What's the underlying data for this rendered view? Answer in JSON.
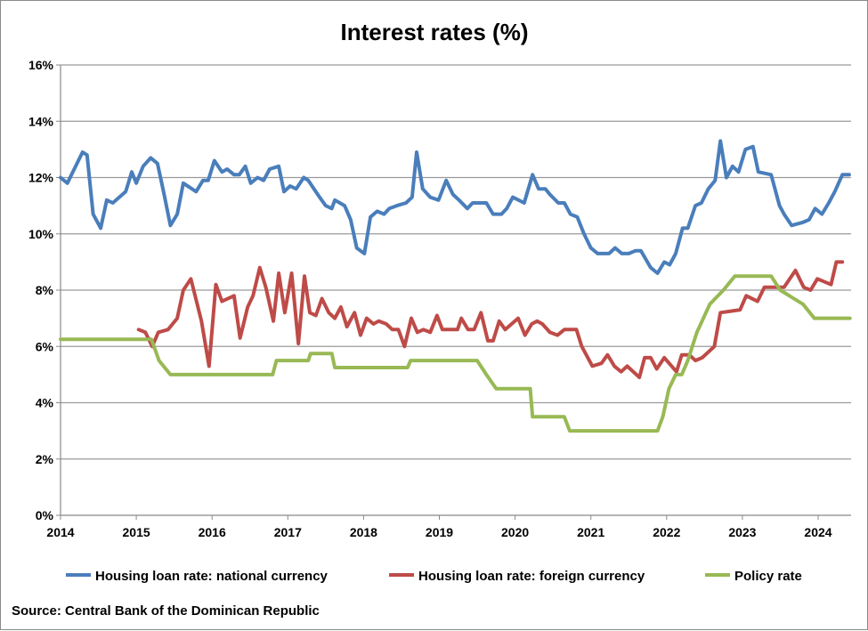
{
  "chart_data": {
    "type": "line",
    "title": "Interest rates (%)",
    "xlabel": "",
    "ylabel": "",
    "ylim": [
      0,
      16
    ],
    "xlim": [
      2014,
      2024.42
    ],
    "y_ticks": [
      "0%",
      "2%",
      "4%",
      "6%",
      "8%",
      "10%",
      "12%",
      "14%",
      "16%"
    ],
    "x_ticks": [
      "2014",
      "2015",
      "2016",
      "2017",
      "2018",
      "2019",
      "2020",
      "2021",
      "2022",
      "2023",
      "2024"
    ],
    "grid": "horizontal",
    "legend_placement": "bottom",
    "source": "Source: Central Bank of the Dominican Republic",
    "series": [
      {
        "name": "Housing loan rate: national currency",
        "color": "#4a7ebb",
        "x": [
          2014.0,
          2014.09,
          2014.29,
          2014.35,
          2014.43,
          2014.53,
          2014.61,
          2014.69,
          2014.86,
          2014.94,
          2015.0,
          2015.09,
          2015.19,
          2015.28,
          2015.36,
          2015.45,
          2015.54,
          2015.62,
          2015.79,
          2015.88,
          2015.95,
          2016.03,
          2016.13,
          2016.2,
          2016.29,
          2016.36,
          2016.44,
          2016.51,
          2016.6,
          2016.68,
          2016.76,
          2016.88,
          2016.95,
          2017.03,
          2017.11,
          2017.21,
          2017.27,
          2017.42,
          2017.5,
          2017.58,
          2017.62,
          2017.75,
          2017.83,
          2017.91,
          2018.01,
          2018.09,
          2018.18,
          2018.27,
          2018.34,
          2018.44,
          2018.56,
          2018.64,
          2018.7,
          2018.78,
          2018.88,
          2018.99,
          2019.09,
          2019.18,
          2019.26,
          2019.37,
          2019.44,
          2019.62,
          2019.71,
          2019.82,
          2019.89,
          2019.97,
          2020.12,
          2020.23,
          2020.31,
          2020.4,
          2020.46,
          2020.57,
          2020.65,
          2020.73,
          2020.82,
          2020.91,
          2021.0,
          2021.09,
          2021.24,
          2021.32,
          2021.41,
          2021.5,
          2021.59,
          2021.66,
          2021.79,
          2021.88,
          2021.97,
          2022.04,
          2022.12,
          2022.21,
          2022.28,
          2022.38,
          2022.46,
          2022.55,
          2022.64,
          2022.71,
          2022.79,
          2022.87,
          2022.95,
          2023.04,
          2023.14,
          2023.21,
          2023.38,
          2023.49,
          2023.55,
          2023.65,
          2023.79,
          2023.88,
          2023.96,
          2024.05,
          2024.14,
          2024.22,
          2024.32,
          2024.41
        ],
        "values": [
          12.0,
          11.8,
          12.9,
          12.8,
          10.7,
          10.2,
          11.2,
          11.1,
          11.5,
          12.2,
          11.8,
          12.4,
          12.7,
          12.5,
          11.5,
          10.3,
          10.7,
          11.8,
          11.5,
          11.9,
          11.9,
          12.6,
          12.2,
          12.3,
          12.1,
          12.1,
          12.4,
          11.8,
          12.0,
          11.9,
          12.3,
          12.4,
          11.5,
          11.7,
          11.6,
          12.0,
          11.9,
          11.3,
          11.0,
          10.9,
          11.2,
          11.0,
          10.5,
          9.5,
          9.3,
          10.6,
          10.8,
          10.7,
          10.9,
          11.0,
          11.1,
          11.3,
          12.9,
          11.6,
          11.3,
          11.2,
          11.9,
          11.4,
          11.2,
          10.9,
          11.1,
          11.1,
          10.7,
          10.7,
          10.9,
          11.3,
          11.1,
          12.1,
          11.6,
          11.6,
          11.4,
          11.1,
          11.1,
          10.7,
          10.6,
          10.0,
          9.5,
          9.3,
          9.3,
          9.5,
          9.3,
          9.3,
          9.4,
          9.4,
          8.8,
          8.6,
          9.0,
          8.9,
          9.3,
          10.2,
          10.2,
          11.0,
          11.1,
          11.6,
          11.9,
          13.3,
          12.0,
          12.4,
          12.2,
          13.0,
          13.1,
          12.2,
          12.1,
          11.0,
          10.7,
          10.3,
          10.4,
          10.5,
          10.9,
          10.7,
          11.1,
          11.5,
          12.1,
          12.1
        ]
      },
      {
        "name": "Housing loan rate: foreign currency",
        "color": "#be4b48",
        "x": [
          2015.03,
          2015.12,
          2015.21,
          2015.29,
          2015.42,
          2015.54,
          2015.62,
          2015.72,
          2015.86,
          2015.96,
          2016.05,
          2016.13,
          2016.29,
          2016.37,
          2016.47,
          2016.54,
          2016.63,
          2016.71,
          2016.81,
          2016.88,
          2016.96,
          2017.05,
          2017.14,
          2017.22,
          2017.29,
          2017.37,
          2017.45,
          2017.54,
          2017.62,
          2017.7,
          2017.78,
          2017.88,
          2017.96,
          2018.04,
          2018.13,
          2018.2,
          2018.3,
          2018.38,
          2018.46,
          2018.54,
          2018.63,
          2018.71,
          2018.79,
          2018.88,
          2018.97,
          2019.04,
          2019.24,
          2019.29,
          2019.38,
          2019.46,
          2019.55,
          2019.64,
          2019.71,
          2019.79,
          2019.87,
          2020.04,
          2020.13,
          2020.22,
          2020.29,
          2020.36,
          2020.46,
          2020.56,
          2020.65,
          2020.81,
          2020.88,
          2021.02,
          2021.14,
          2021.22,
          2021.31,
          2021.4,
          2021.48,
          2021.64,
          2021.71,
          2021.79,
          2021.87,
          2021.97,
          2022.13,
          2022.2,
          2022.3,
          2022.38,
          2022.47,
          2022.63,
          2022.71,
          2022.97,
          2023.05,
          2023.2,
          2023.29,
          2023.4,
          2023.55,
          2023.7,
          2023.81,
          2023.9,
          2023.99,
          2024.17,
          2024.24,
          2024.32
        ],
        "values": [
          6.6,
          6.5,
          6.0,
          6.5,
          6.6,
          7.0,
          8.0,
          8.4,
          6.9,
          5.3,
          8.2,
          7.6,
          7.8,
          6.3,
          7.4,
          7.8,
          8.8,
          8.1,
          6.9,
          8.6,
          7.2,
          8.6,
          6.1,
          8.5,
          7.2,
          7.1,
          7.7,
          7.2,
          7.0,
          7.4,
          6.7,
          7.2,
          6.4,
          7.0,
          6.8,
          6.9,
          6.8,
          6.6,
          6.6,
          6.0,
          7.0,
          6.5,
          6.6,
          6.5,
          7.1,
          6.6,
          6.6,
          7.0,
          6.6,
          6.6,
          7.2,
          6.2,
          6.2,
          6.9,
          6.6,
          7.0,
          6.4,
          6.8,
          6.9,
          6.8,
          6.5,
          6.4,
          6.6,
          6.6,
          6.0,
          5.3,
          5.4,
          5.7,
          5.3,
          5.1,
          5.3,
          4.9,
          5.6,
          5.6,
          5.2,
          5.6,
          5.1,
          5.7,
          5.7,
          5.5,
          5.6,
          6.0,
          7.2,
          7.3,
          7.8,
          7.6,
          8.1,
          8.1,
          8.1,
          8.7,
          8.1,
          8.0,
          8.4,
          8.2,
          9.0,
          9.0
        ]
      },
      {
        "name": "Policy rate",
        "color": "#98b954",
        "x": [
          2014.0,
          2015.2,
          2015.3,
          2015.45,
          2016.8,
          2016.85,
          2017.27,
          2017.3,
          2017.58,
          2017.62,
          2018.58,
          2018.62,
          2019.5,
          2019.62,
          2019.75,
          2020.2,
          2020.23,
          2020.65,
          2020.72,
          2021.88,
          2021.95,
          2022.03,
          2022.12,
          2022.2,
          2022.28,
          2022.4,
          2022.57,
          2022.75,
          2022.9,
          2023.38,
          2023.5,
          2023.65,
          2023.8,
          2023.95,
          2024.42
        ],
        "values": [
          6.25,
          6.25,
          5.5,
          5.0,
          5.0,
          5.5,
          5.5,
          5.75,
          5.75,
          5.25,
          5.25,
          5.5,
          5.5,
          5.0,
          4.5,
          4.5,
          3.5,
          3.5,
          3.0,
          3.0,
          3.5,
          4.5,
          5.0,
          5.0,
          5.5,
          6.5,
          7.5,
          8.0,
          8.5,
          8.5,
          8.0,
          7.75,
          7.5,
          7.0,
          7.0
        ]
      }
    ]
  }
}
